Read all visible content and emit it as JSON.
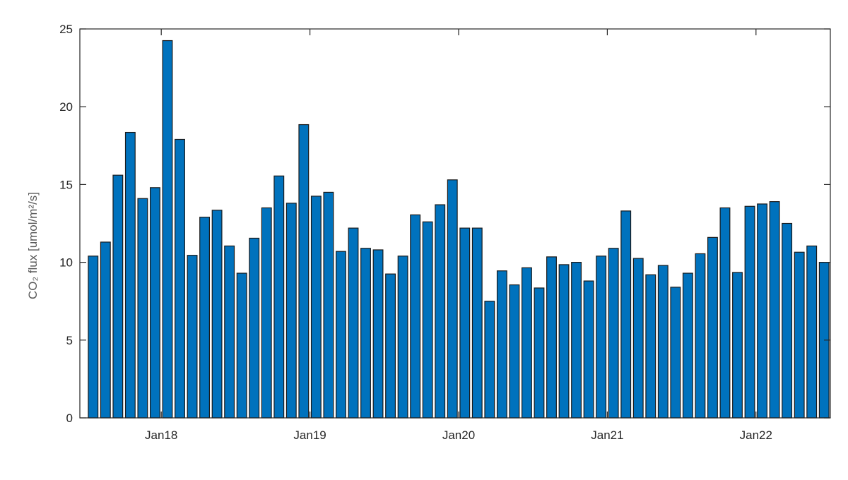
{
  "chart_data": {
    "type": "bar",
    "xlabel": "",
    "ylabel": "CO₂ flux [umol/m²/s]",
    "ylim": [
      0,
      25
    ],
    "yticks": [
      0,
      5,
      10,
      15,
      20,
      25
    ],
    "x_tick_labels": [
      {
        "label": "Jan18",
        "position": 6
      },
      {
        "label": "Jan19",
        "position": 18
      },
      {
        "label": "Jan20",
        "position": 30
      },
      {
        "label": "Jan21",
        "position": 42
      },
      {
        "label": "Jan22",
        "position": 54
      }
    ],
    "bar_color": "#0072BD",
    "grid": false,
    "values": [
      10.4,
      11.3,
      15.6,
      18.35,
      14.1,
      14.8,
      24.25,
      17.9,
      10.45,
      12.9,
      13.35,
      11.05,
      9.3,
      11.55,
      13.5,
      15.55,
      13.8,
      18.85,
      14.25,
      14.5,
      10.7,
      12.2,
      10.9,
      10.8,
      9.25,
      10.4,
      13.05,
      12.6,
      13.7,
      15.3,
      12.2,
      12.2,
      7.5,
      9.45,
      8.55,
      9.65,
      8.35,
      10.35,
      9.85,
      10.0,
      8.8,
      10.4,
      10.9,
      13.3,
      10.25,
      9.2,
      9.8,
      8.4,
      9.3,
      10.55,
      11.6,
      13.5,
      9.35,
      13.6,
      13.75,
      13.9,
      12.5,
      10.65,
      11.05,
      10.0
    ]
  }
}
